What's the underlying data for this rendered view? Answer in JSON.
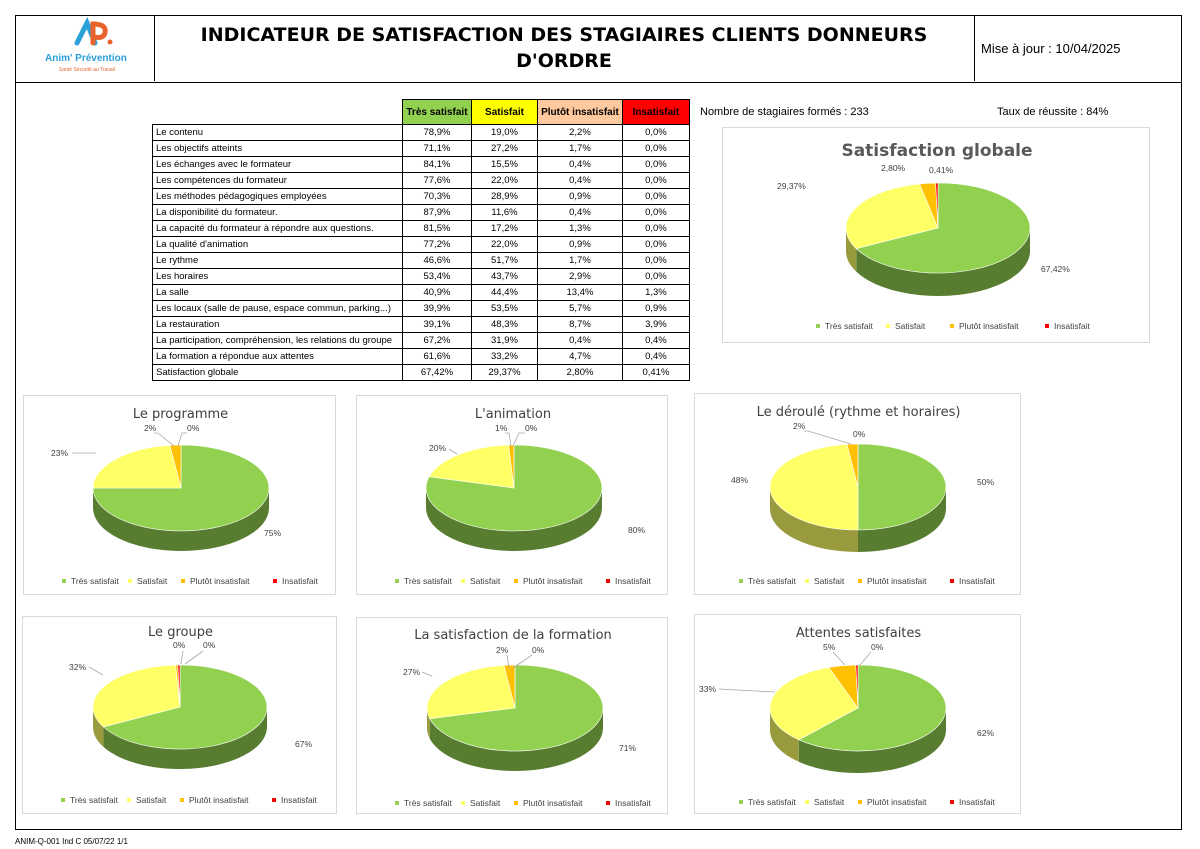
{
  "header": {
    "logo_text": "Anim' Prévention",
    "logo_sub": "Santé Sécurité au Travail",
    "title": "INDICATEUR DE SATISFACTION DES STAGIAIRES CLIENTS DONNEURS D'ORDRE",
    "update": "Mise à jour : 10/04/2025"
  },
  "colors": {
    "tres": "#92d050",
    "sat": "#ffff66",
    "plutot": "#ffc000",
    "insat": "#ff0000",
    "tres_th": "#92d050",
    "sat_th": "#ffff00",
    "plutot_th": "#ffc99f",
    "insat_th": "#ff0000"
  },
  "stats": {
    "trained": "Nombre de stagiaires formés : 233",
    "success": "Taux de réussite : 84%"
  },
  "table": {
    "headers": [
      "Très satisfait",
      "Satisfait",
      "Plutôt insatisfait",
      "Insatisfait"
    ],
    "rows": [
      {
        "label": "Le contenu",
        "values": [
          "78,9%",
          "19,0%",
          "2,2%",
          "0,0%"
        ]
      },
      {
        "label": "Les objectifs atteints",
        "values": [
          "71,1%",
          "27,2%",
          "1,7%",
          "0,0%"
        ]
      },
      {
        "label": "Les échanges avec le formateur",
        "values": [
          "84,1%",
          "15,5%",
          "0,4%",
          "0,0%"
        ]
      },
      {
        "label": "Les compétences du formateur",
        "values": [
          "77,6%",
          "22,0%",
          "0,4%",
          "0,0%"
        ]
      },
      {
        "label": "Les méthodes pédagogiques employées",
        "values": [
          "70,3%",
          "28,9%",
          "0,9%",
          "0,0%"
        ]
      },
      {
        "label": "La disponibilité du formateur.",
        "values": [
          "87,9%",
          "11,6%",
          "0,4%",
          "0,0%"
        ]
      },
      {
        "label": "La capacité du formateur à répondre aux questions.",
        "values": [
          "81,5%",
          "17,2%",
          "1,3%",
          "0,0%"
        ]
      },
      {
        "label": "La qualité d'animation",
        "values": [
          "77,2%",
          "22,0%",
          "0,9%",
          "0,0%"
        ]
      },
      {
        "label": "Le rythme",
        "values": [
          "46,6%",
          "51,7%",
          "1,7%",
          "0,0%"
        ]
      },
      {
        "label": "Les horaires",
        "values": [
          "53,4%",
          "43,7%",
          "2,9%",
          "0,0%"
        ]
      },
      {
        "label": "La salle",
        "values": [
          "40,9%",
          "44,4%",
          "13,4%",
          "1,3%"
        ]
      },
      {
        "label": "Les locaux (salle de pause, espace commun, parking...)",
        "values": [
          "39,9%",
          "53,5%",
          "5,7%",
          "0,9%"
        ]
      },
      {
        "label": "La restauration",
        "values": [
          "39,1%",
          "48,3%",
          "8,7%",
          "3,9%"
        ]
      },
      {
        "label": "La participation, compréhension, les relations du groupe",
        "values": [
          "67,2%",
          "31,9%",
          "0,4%",
          "0,4%"
        ]
      },
      {
        "label": "La formation a répondue aux attentes",
        "values": [
          "61,6%",
          "33,2%",
          "4,7%",
          "0,4%"
        ]
      }
    ],
    "total": {
      "label": "Satisfaction globale",
      "values": [
        "67,42%",
        "29,37%",
        "2,80%",
        "0,41%"
      ]
    }
  },
  "chart_data": [
    {
      "type": "pie",
      "title": "Satisfaction globale",
      "categories": [
        "Très satisfait",
        "Satisfait",
        "Plutôt insatisfait",
        "Insatisfait"
      ],
      "values": [
        67.42,
        29.37,
        2.8,
        0.41
      ],
      "data_labels": [
        "67,42%",
        "29,37%",
        "2,80%",
        "0,41%"
      ],
      "legend": "bottom"
    },
    {
      "type": "pie",
      "title": "Le programme",
      "categories": [
        "Très satisfait",
        "Satisfait",
        "Plutôt insatisfait",
        "Insatisfait"
      ],
      "values": [
        75,
        23,
        2,
        0
      ],
      "data_labels": [
        "75%",
        "23%",
        "2%",
        "0%"
      ],
      "legend": "bottom"
    },
    {
      "type": "pie",
      "title": "L'animation",
      "categories": [
        "Très satisfait",
        "Satisfait",
        "Plutôt insatisfait",
        "Insatisfait"
      ],
      "values": [
        80,
        20,
        1,
        0
      ],
      "data_labels": [
        "80%",
        "20%",
        "1%",
        "0%"
      ],
      "legend": "bottom"
    },
    {
      "type": "pie",
      "title": "Le déroulé (rythme et horaires)",
      "categories": [
        "Très satisfait",
        "Satisfait",
        "Plutôt insatisfait",
        "Insatisfait"
      ],
      "values": [
        50,
        48,
        2,
        0
      ],
      "data_labels": [
        "50%",
        "48%",
        "2%",
        "0%"
      ],
      "legend": "bottom"
    },
    {
      "type": "pie",
      "title": "Le groupe",
      "categories": [
        "Très satisfait",
        "Satisfait",
        "Plutôt insatisfait",
        "Insatisfait"
      ],
      "values": [
        67,
        32,
        0.4,
        0.4
      ],
      "data_labels": [
        "67%",
        "32%",
        "0%",
        "0%"
      ],
      "legend": "bottom"
    },
    {
      "type": "pie",
      "title": "La satisfaction de la  formation",
      "categories": [
        "Très satisfait",
        "Satisfait",
        "Plutôt insatisfait",
        "Insatisfait"
      ],
      "values": [
        71,
        27,
        2,
        0
      ],
      "data_labels": [
        "71%",
        "27%",
        "2%",
        "0%"
      ],
      "legend": "bottom"
    },
    {
      "type": "pie",
      "title": "Attentes satisfaites",
      "categories": [
        "Très satisfait",
        "Satisfait",
        "Plutôt insatisfait",
        "Insatisfait"
      ],
      "values": [
        62,
        33,
        5,
        0.4
      ],
      "data_labels": [
        "62%",
        "33%",
        "5%",
        "0%"
      ],
      "legend": "bottom"
    }
  ],
  "footer": "ANIM-Q-001 Ind C 05/07/22 1/1"
}
